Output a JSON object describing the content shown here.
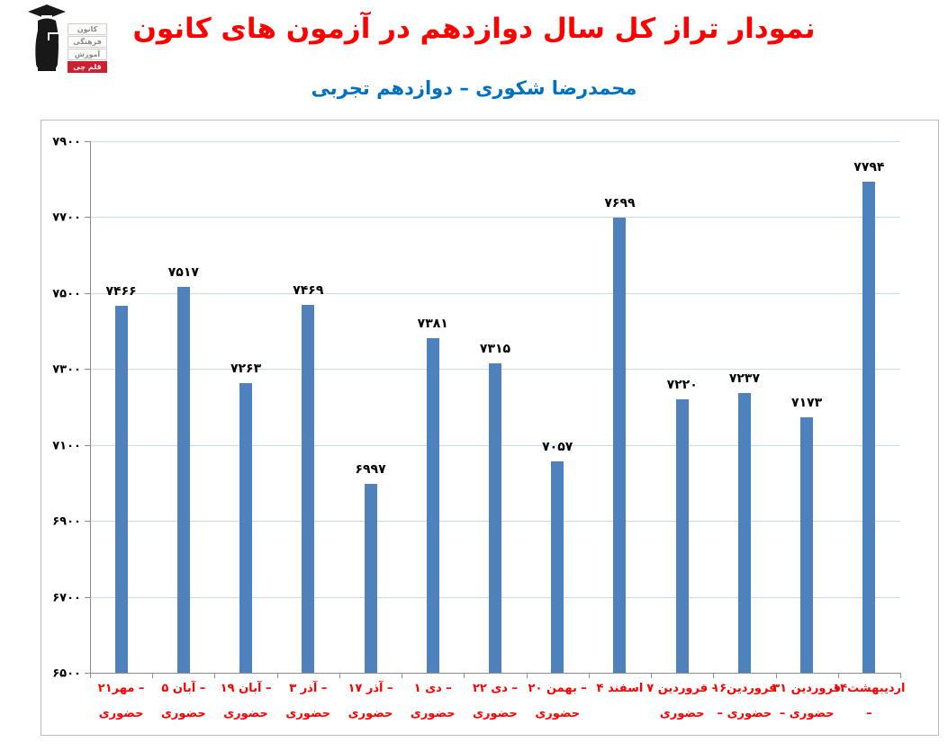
{
  "header": {
    "logo": {
      "line1": "کانون",
      "line2": "فرهنگی",
      "line3": "آموزش",
      "badge": "قلم چی",
      "badge_color": "#cf2030"
    },
    "title": "نمودار تراز کل سال دوازدهم در آزمون های کانون",
    "title_color": "#ff0000",
    "subtitle": "محمدرضا شکوری – دوازدهم تجربی",
    "subtitle_color": "#0070c0"
  },
  "chart_data": {
    "type": "bar",
    "title": "نمودار تراز کل سال دوازدهم در آزمون های کانون",
    "subtitle": "محمدرضا شکوری – دوازدهم تجربی",
    "xlabel": "",
    "ylabel": "",
    "ylim": [
      6500,
      7900
    ],
    "grid": true,
    "legend": false,
    "categories": [
      "۲۱مهر – حضوری",
      "۵ آبان – حضوری",
      "۱۹ آبان – حضوری",
      "۳ آذر – حضوری",
      "۱۷ آذر – حضوری",
      "۱ دی – حضوری",
      "۲۲ دی – حضوری",
      "۲۰ بهمن – حضوری",
      "۴ اسفند",
      "۷ فروردین – حضوری",
      "۱۶فروردین – حضوری",
      "۳۱ فروردین – حضوری",
      "۱۴اردیبهشت –"
    ],
    "category_lines": [
      [
        "۲۱مهر –",
        "حضوری"
      ],
      [
        "۵ آبان –",
        "حضوری"
      ],
      [
        "۱۹ آبان –",
        "حضوری"
      ],
      [
        "۳ آذر –",
        "حضوری"
      ],
      [
        "۱۷ آذر –",
        "حضوری"
      ],
      [
        "۱ دی –",
        "حضوری"
      ],
      [
        "۲۲ دی –",
        "حضوری"
      ],
      [
        "۲۰ بهمن –",
        "حضوری"
      ],
      [
        "۴ اسفند",
        ""
      ],
      [
        "۷ فروردین –",
        "حضوری"
      ],
      [
        "۱۶فروردین",
        "– حضوری"
      ],
      [
        "۳۱ فروردین",
        "– حضوری"
      ],
      [
        "۱۴اردیبهشت",
        "–"
      ]
    ],
    "values": [
      7466,
      7517,
      7263,
      7469,
      6997,
      7381,
      7315,
      7057,
      7699,
      7220,
      7237,
      7173,
      7794
    ],
    "value_labels": [
      "۷۴۶۶",
      "۷۵۱۷",
      "۷۲۶۳",
      "۷۴۶۹",
      "۶۹۹۷",
      "۷۳۸۱",
      "۷۳۱۵",
      "۷۰۵۷",
      "۷۶۹۹",
      "۷۲۲۰",
      "۷۲۳۷",
      "۷۱۷۳",
      "۷۷۹۴"
    ],
    "y_ticks": {
      "values": [
        6500,
        6700,
        6900,
        7100,
        7300,
        7500,
        7700,
        7900
      ],
      "labels": [
        "۶۵۰۰",
        "۶۷۰۰",
        "۶۹۰۰",
        "۷۱۰۰",
        "۷۳۰۰",
        "۷۵۰۰",
        "۷۷۰۰",
        "۷۹۰۰"
      ]
    },
    "bar_color": "#4f81bd",
    "gridline_color": "#c6d9f1",
    "axis_color": "#8c8c8c",
    "value_label_color": "#000000",
    "category_label_color": "#ff0000"
  }
}
